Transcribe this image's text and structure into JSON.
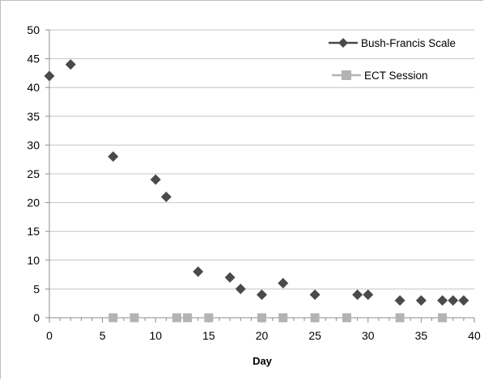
{
  "chart_data": {
    "type": "scatter",
    "title": "",
    "xlabel": "Day",
    "ylabel": "",
    "xlim": [
      0,
      40
    ],
    "ylim": [
      0,
      50
    ],
    "x_ticks": [
      0,
      5,
      10,
      15,
      20,
      25,
      30,
      35,
      40
    ],
    "y_ticks": [
      0,
      5,
      10,
      15,
      20,
      25,
      30,
      35,
      40,
      45,
      50
    ],
    "grid": "horizontal",
    "legend_position": "top-right",
    "series": [
      {
        "name": "Bush-Francis Scale",
        "marker": "diamond",
        "color": "#4a4a4a",
        "points": [
          {
            "x": 0,
            "y": 42
          },
          {
            "x": 2,
            "y": 44
          },
          {
            "x": 6,
            "y": 28
          },
          {
            "x": 10,
            "y": 24
          },
          {
            "x": 11,
            "y": 21
          },
          {
            "x": 14,
            "y": 8
          },
          {
            "x": 17,
            "y": 7
          },
          {
            "x": 18,
            "y": 5
          },
          {
            "x": 20,
            "y": 4
          },
          {
            "x": 22,
            "y": 6
          },
          {
            "x": 25,
            "y": 4
          },
          {
            "x": 29,
            "y": 4
          },
          {
            "x": 30,
            "y": 4
          },
          {
            "x": 33,
            "y": 3
          },
          {
            "x": 35,
            "y": 3
          },
          {
            "x": 37,
            "y": 3
          },
          {
            "x": 38,
            "y": 3
          },
          {
            "x": 39,
            "y": 3
          }
        ]
      },
      {
        "name": "ECT Session",
        "marker": "square",
        "color": "#b3b3b3",
        "points": [
          {
            "x": 6,
            "y": 0
          },
          {
            "x": 8,
            "y": 0
          },
          {
            "x": 12,
            "y": 0
          },
          {
            "x": 13,
            "y": 0
          },
          {
            "x": 15,
            "y": 0
          },
          {
            "x": 20,
            "y": 0
          },
          {
            "x": 22,
            "y": 0
          },
          {
            "x": 25,
            "y": 0
          },
          {
            "x": 28,
            "y": 0
          },
          {
            "x": 33,
            "y": 0
          },
          {
            "x": 37,
            "y": 0
          }
        ]
      }
    ]
  }
}
